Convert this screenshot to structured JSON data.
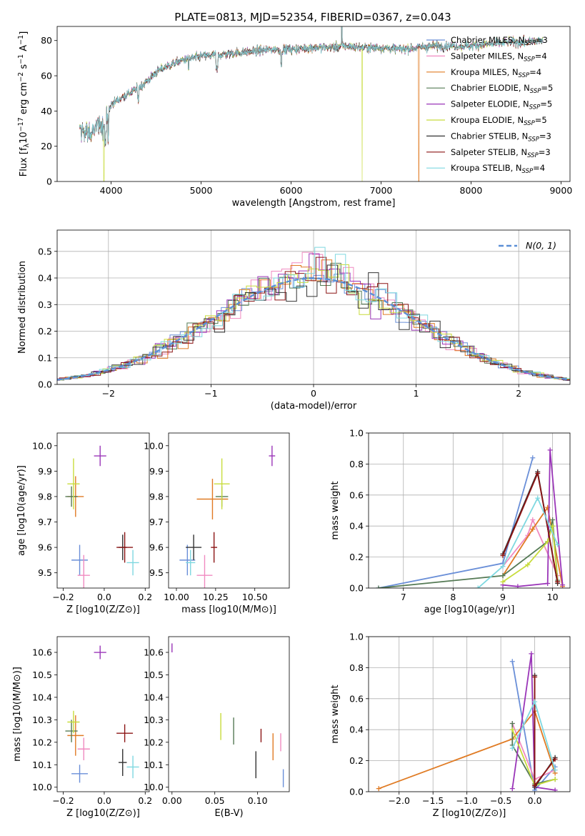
{
  "title": "PLATE=0813, MJD=52354, FIBERID=0367, z=0.043",
  "colors": {
    "Chabrier MILES": "#6a8fd8",
    "Salpeter MILES": "#f08ac0",
    "Kroupa MILES": "#e07b24",
    "Chabrier ELODIE": "#557a55",
    "Salpeter ELODIE": "#9a35b8",
    "Kroupa ELODIE": "#c8dc3c",
    "Chabrier STELIB": "#333333",
    "Salpeter STELIB": "#8b1414",
    "Kroupa STELIB": "#7ed8e0"
  },
  "chart_data": [
    {
      "id": "spectrum",
      "type": "line",
      "xlabel": "wavelength [Angstrom, rest frame]",
      "ylabel": "Flux [f_λ 10^-17 erg cm^-2 s^-1 A^-1]",
      "xlim": [
        3400,
        9100
      ],
      "ylim": [
        0,
        88
      ],
      "xticks": [
        4000,
        5000,
        6000,
        7000,
        8000,
        9000
      ],
      "yticks": [
        0,
        20,
        40,
        60,
        80
      ],
      "x_range_data": [
        3650,
        8800
      ],
      "legend_position": "upper-right",
      "continuum": [
        [
          3650,
          30
        ],
        [
          3750,
          27
        ],
        [
          3850,
          31
        ],
        [
          3950,
          33
        ],
        [
          4000,
          44
        ],
        [
          4100,
          47
        ],
        [
          4200,
          50
        ],
        [
          4300,
          53
        ],
        [
          4400,
          57
        ],
        [
          4500,
          62
        ],
        [
          4600,
          65
        ],
        [
          4700,
          67
        ],
        [
          4800,
          69
        ],
        [
          4900,
          70
        ],
        [
          5000,
          71
        ],
        [
          5200,
          72
        ],
        [
          5400,
          73
        ],
        [
          5600,
          74
        ],
        [
          5800,
          75
        ],
        [
          6000,
          75
        ],
        [
          6200,
          76
        ],
        [
          6400,
          76
        ],
        [
          6600,
          77
        ],
        [
          6800,
          76
        ],
        [
          7000,
          76
        ],
        [
          7200,
          75
        ],
        [
          7400,
          76
        ],
        [
          7600,
          77
        ],
        [
          7800,
          77
        ],
        [
          8000,
          77
        ],
        [
          8200,
          78
        ],
        [
          8400,
          79
        ],
        [
          8600,
          79
        ],
        [
          8800,
          80
        ]
      ],
      "drops": [
        {
          "model": "Kroupa ELODIE",
          "x": 3920
        },
        {
          "model": "Kroupa ELODIE",
          "x": 6790
        },
        {
          "model": "Kroupa MILES",
          "x": 7420
        }
      ],
      "legend": [
        "Chabrier MILES, N_SSP=3",
        "Salpeter MILES, N_SSP=4",
        "Kroupa MILES, N_SSP=4",
        "Chabrier ELODIE, N_SSP=5",
        "Salpeter ELODIE, N_SSP=5",
        "Kroupa ELODIE, N_SSP=5",
        "Chabrier STELIB, N_SSP=3",
        "Salpeter STELIB, N_SSP=3",
        "Kroupa STELIB, N_SSP=4"
      ]
    },
    {
      "id": "residuals",
      "type": "step-histogram",
      "xlabel": "(data-model)/error",
      "ylabel": "Normed distribution",
      "xlim": [
        -2.5,
        2.5
      ],
      "ylim": [
        0,
        0.58
      ],
      "xticks": [
        -2,
        -1,
        0,
        1,
        2
      ],
      "yticks": [
        0.0,
        0.1,
        0.2,
        0.3,
        0.4,
        0.5
      ],
      "grid": true,
      "legend_position": "upper-right",
      "reference_curve": {
        "label": "N(0, 1)",
        "mean": 0,
        "sigma": 1,
        "color": "#5b8fd6"
      },
      "bin_width": 0.1,
      "series_count": 9
    },
    {
      "id": "age_vs_Z",
      "type": "errorbar",
      "xlabel": "Z [log10(Z/Z⊙)]",
      "ylabel": "age [log10(age/yr)]",
      "xlim": [
        -0.23,
        0.22
      ],
      "ylim": [
        9.44,
        10.05
      ],
      "xticks": [
        -0.2,
        0.0,
        0.2
      ],
      "yticks": [
        9.5,
        9.6,
        9.7,
        9.8,
        9.9,
        10.0
      ],
      "points": [
        {
          "model": "Chabrier MILES",
          "x": -0.12,
          "y": 9.55,
          "xerr": 0.04,
          "yerr": 0.06
        },
        {
          "model": "Salpeter MILES",
          "x": -0.1,
          "y": 9.49,
          "xerr": 0.03,
          "yerr": 0.08
        },
        {
          "model": "Kroupa MILES",
          "x": -0.14,
          "y": 9.8,
          "xerr": 0.04,
          "yerr": 0.08
        },
        {
          "model": "Chabrier ELODIE",
          "x": -0.16,
          "y": 9.8,
          "xerr": 0.03,
          "yerr": 0.04
        },
        {
          "model": "Salpeter ELODIE",
          "x": -0.02,
          "y": 9.96,
          "xerr": 0.03,
          "yerr": 0.04
        },
        {
          "model": "Kroupa ELODIE",
          "x": -0.15,
          "y": 9.85,
          "xerr": 0.03,
          "yerr": 0.1
        },
        {
          "model": "Chabrier STELIB",
          "x": 0.09,
          "y": 9.6,
          "xerr": 0.02,
          "yerr": 0.05
        },
        {
          "model": "Salpeter STELIB",
          "x": 0.1,
          "y": 9.6,
          "xerr": 0.04,
          "yerr": 0.06
        },
        {
          "model": "Kroupa STELIB",
          "x": 0.14,
          "y": 9.54,
          "xerr": 0.03,
          "yerr": 0.05
        }
      ]
    },
    {
      "id": "age_vs_mass",
      "type": "errorbar",
      "xlabel": "mass [log10(M/M⊙)]",
      "ylabel": "",
      "xlim": [
        9.95,
        10.72
      ],
      "ylim": [
        9.44,
        10.05
      ],
      "xticks": [
        10.0,
        10.25,
        10.5
      ],
      "yticks": [
        9.5,
        9.6,
        9.7,
        9.8,
        9.9,
        10.0
      ],
      "points": [
        {
          "model": "Chabrier MILES",
          "x": 10.07,
          "y": 9.55,
          "xerr": 0.05,
          "yerr": 0.06
        },
        {
          "model": "Salpeter MILES",
          "x": 10.18,
          "y": 9.49,
          "xerr": 0.05,
          "yerr": 0.08
        },
        {
          "model": "Kroupa MILES",
          "x": 10.23,
          "y": 9.79,
          "xerr": 0.1,
          "yerr": 0.08
        },
        {
          "model": "Chabrier ELODIE",
          "x": 10.29,
          "y": 9.8,
          "xerr": 0.04,
          "yerr": 0.04
        },
        {
          "model": "Salpeter ELODIE",
          "x": 10.61,
          "y": 9.96,
          "xerr": 0.02,
          "yerr": 0.04
        },
        {
          "model": "Kroupa ELODIE",
          "x": 10.29,
          "y": 9.85,
          "xerr": 0.05,
          "yerr": 0.1
        },
        {
          "model": "Chabrier STELIB",
          "x": 10.11,
          "y": 9.6,
          "xerr": 0.05,
          "yerr": 0.05
        },
        {
          "model": "Salpeter STELIB",
          "x": 10.24,
          "y": 9.6,
          "xerr": 0.02,
          "yerr": 0.06
        },
        {
          "model": "Kroupa STELIB",
          "x": 10.09,
          "y": 9.54,
          "xerr": 0.03,
          "yerr": 0.05
        }
      ]
    },
    {
      "id": "weight_vs_age",
      "type": "line",
      "xlabel": "age  [log10(age/yr)]",
      "ylabel": "mass weight",
      "xlim": [
        6.3,
        10.35
      ],
      "ylim": [
        0,
        1.0
      ],
      "xticks": [
        7,
        8,
        9,
        10
      ],
      "yticks": [
        0.0,
        0.2,
        0.4,
        0.6,
        0.8,
        1.0
      ],
      "grid": true,
      "series": [
        {
          "model": "Chabrier MILES",
          "x": [
            6.5,
            9.0,
            9.6
          ],
          "y": [
            0.0,
            0.16,
            0.84
          ]
        },
        {
          "model": "Salpeter MILES",
          "x": [
            9.0,
            9.5,
            9.6,
            10.1
          ],
          "y": [
            0.14,
            0.34,
            0.44,
            0.08
          ]
        },
        {
          "model": "Kroupa MILES",
          "x": [
            9.0,
            9.6,
            9.9,
            10.2
          ],
          "y": [
            0.08,
            0.38,
            0.52,
            0.01
          ]
        },
        {
          "model": "Chabrier ELODIE",
          "x": [
            6.5,
            9.0,
            9.9,
            10.0,
            10.1
          ],
          "y": [
            0.0,
            0.08,
            0.3,
            0.44,
            0.05
          ]
        },
        {
          "model": "Salpeter ELODIE",
          "x": [
            9.0,
            9.3,
            9.9,
            9.95,
            10.2
          ],
          "y": [
            0.02,
            0.01,
            0.03,
            0.89,
            0.02
          ]
        },
        {
          "model": "Kroupa ELODIE",
          "x": [
            9.0,
            9.5,
            9.9,
            10.0,
            10.1
          ],
          "y": [
            0.04,
            0.15,
            0.3,
            0.4,
            0.04
          ]
        },
        {
          "model": "Chabrier STELIB",
          "x": [
            9.0,
            9.7,
            10.1
          ],
          "y": [
            0.22,
            0.75,
            0.03
          ]
        },
        {
          "model": "Salpeter STELIB",
          "x": [
            9.0,
            9.7,
            10.1
          ],
          "y": [
            0.21,
            0.74,
            0.04
          ]
        },
        {
          "model": "Kroupa STELIB",
          "x": [
            8.5,
            9.0,
            9.7,
            10.1
          ],
          "y": [
            0.0,
            0.14,
            0.58,
            0.28
          ]
        }
      ]
    },
    {
      "id": "mass_vs_Z",
      "type": "errorbar",
      "xlabel": "Z [log10(Z/Z⊙)]",
      "ylabel": "mass [log10(M/M⊙)]",
      "xlim": [
        -0.23,
        0.22
      ],
      "ylim": [
        9.98,
        10.67
      ],
      "xticks": [
        -0.2,
        0.0,
        0.2
      ],
      "yticks": [
        10.0,
        10.1,
        10.2,
        10.3,
        10.4,
        10.5,
        10.6
      ],
      "points": [
        {
          "model": "Chabrier MILES",
          "x": -0.12,
          "y": 10.06,
          "xerr": 0.04,
          "yerr": 0.04
        },
        {
          "model": "Salpeter MILES",
          "x": -0.1,
          "y": 10.17,
          "xerr": 0.03,
          "yerr": 0.05
        },
        {
          "model": "Kroupa MILES",
          "x": -0.14,
          "y": 10.23,
          "xerr": 0.04,
          "yerr": 0.09
        },
        {
          "model": "Chabrier ELODIE",
          "x": -0.16,
          "y": 10.25,
          "xerr": 0.03,
          "yerr": 0.05
        },
        {
          "model": "Salpeter ELODIE",
          "x": -0.02,
          "y": 10.6,
          "xerr": 0.03,
          "yerr": 0.03
        },
        {
          "model": "Kroupa ELODIE",
          "x": -0.15,
          "y": 10.29,
          "xerr": 0.03,
          "yerr": 0.05
        },
        {
          "model": "Chabrier STELIB",
          "x": 0.09,
          "y": 10.11,
          "xerr": 0.02,
          "yerr": 0.06
        },
        {
          "model": "Salpeter STELIB",
          "x": 0.1,
          "y": 10.24,
          "xerr": 0.04,
          "yerr": 0.04
        },
        {
          "model": "Kroupa STELIB",
          "x": 0.14,
          "y": 10.09,
          "xerr": 0.03,
          "yerr": 0.05
        }
      ]
    },
    {
      "id": "mass_vs_EBV",
      "type": "errorbar",
      "xlabel": "E(B-V)",
      "ylabel": "",
      "xlim": [
        -0.004,
        0.137
      ],
      "ylim": [
        9.98,
        10.67
      ],
      "xticks": [
        0.0,
        0.05,
        0.1
      ],
      "yticks": [
        10.0,
        10.1,
        10.2,
        10.3,
        10.4,
        10.5,
        10.6
      ],
      "points": [
        {
          "model": "Chabrier MILES",
          "x": 0.13,
          "y": 10.04,
          "xerr": 0,
          "yerr": 0.04
        },
        {
          "model": "Salpeter MILES",
          "x": 0.127,
          "y": 10.2,
          "xerr": 0,
          "yerr": 0.04
        },
        {
          "model": "Kroupa MILES",
          "x": 0.118,
          "y": 10.18,
          "xerr": 0,
          "yerr": 0.06
        },
        {
          "model": "Chabrier ELODIE",
          "x": 0.072,
          "y": 10.25,
          "xerr": 0,
          "yerr": 0.06
        },
        {
          "model": "Salpeter ELODIE",
          "x": 0.0,
          "y": 10.62,
          "xerr": 0,
          "yerr": 0.02
        },
        {
          "model": "Kroupa ELODIE",
          "x": 0.057,
          "y": 10.27,
          "xerr": 0,
          "yerr": 0.06
        },
        {
          "model": "Chabrier STELIB",
          "x": 0.098,
          "y": 10.1,
          "xerr": 0,
          "yerr": 0.06
        },
        {
          "model": "Salpeter STELIB",
          "x": 0.104,
          "y": 10.23,
          "xerr": 0,
          "yerr": 0.03
        }
      ]
    },
    {
      "id": "weight_vs_Z",
      "type": "line",
      "xlabel": "Z [log10(Z/Z⊙)]",
      "ylabel": "mass weight",
      "xlim": [
        -2.45,
        0.52
      ],
      "ylim": [
        0,
        1.0
      ],
      "xticks": [
        -2.0,
        -1.5,
        -1.0,
        -0.5,
        0.0
      ],
      "yticks": [
        0.0,
        0.2,
        0.4,
        0.6,
        0.8,
        1.0
      ],
      "grid": true,
      "series": [
        {
          "model": "Chabrier MILES",
          "x": [
            -0.33,
            0.0,
            0.3
          ],
          "y": [
            0.84,
            0.01,
            0.16
          ]
        },
        {
          "model": "Salpeter MILES",
          "x": [
            -0.33,
            0.0,
            0.3
          ],
          "y": [
            0.44,
            0.08,
            0.14
          ]
        },
        {
          "model": "Kroupa MILES",
          "x": [
            -2.3,
            -0.33,
            0.0,
            0.3
          ],
          "y": [
            0.02,
            0.34,
            0.52,
            0.12
          ]
        },
        {
          "model": "Chabrier ELODIE",
          "x": [
            -0.33,
            -0.33,
            0.0,
            0.3
          ],
          "y": [
            0.44,
            0.3,
            0.05,
            0.08
          ]
        },
        {
          "model": "Salpeter ELODIE",
          "x": [
            -0.33,
            -0.05,
            0.0,
            0.3
          ],
          "y": [
            0.02,
            0.89,
            0.03,
            0.01
          ]
        },
        {
          "model": "Kroupa ELODIE",
          "x": [
            -0.33,
            0.0,
            0.3
          ],
          "y": [
            0.4,
            0.04,
            0.08
          ]
        },
        {
          "model": "Chabrier STELIB",
          "x": [
            0.0,
            0.0,
            0.3
          ],
          "y": [
            0.75,
            0.03,
            0.22
          ]
        },
        {
          "model": "Salpeter STELIB",
          "x": [
            0.0,
            0.0,
            0.3
          ],
          "y": [
            0.74,
            0.04,
            0.21
          ]
        },
        {
          "model": "Kroupa STELIB",
          "x": [
            -0.33,
            0.0,
            0.3
          ],
          "y": [
            0.28,
            0.58,
            0.14
          ]
        }
      ]
    }
  ]
}
